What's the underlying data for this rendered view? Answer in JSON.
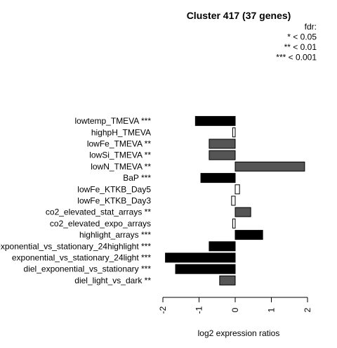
{
  "chart_data": {
    "type": "bar",
    "orientation": "horizontal",
    "title": "Cluster 417 (37 genes)",
    "xlabel": "log2 expression ratios",
    "xlim": [
      -2.1,
      2.1
    ],
    "xticks": [
      -2,
      -1,
      0,
      1,
      2
    ],
    "xtick_labels": [
      "-2",
      "-1",
      "0",
      "1",
      "2"
    ],
    "legend": {
      "position": "top-right",
      "lines": [
        "fdr:",
        "* < 0.05",
        "** < 0.01",
        "*** < 0.001"
      ]
    },
    "categories": [
      "lowtemp_TMEVA ***",
      "highpH_TMEVA",
      "lowFe_TMEVA **",
      "lowSi_TMEVA **",
      "lowN_TMEVA **",
      "BaP ***",
      "lowFe_KTKB_Day5",
      "lowFe_KTKB_Day3",
      "co2_elevated_stat_arrays **",
      "co2_elevated_expo_arrays",
      "highlight_arrays ***",
      "exponential_vs_stationary_24highlight ***",
      "exponential_vs_stationary_24light ***",
      "diel_exponential_vs_stationary ***",
      "diel_light_vs_dark **"
    ],
    "values": [
      -1.1,
      -0.07,
      -0.72,
      -0.72,
      1.92,
      -0.95,
      0.12,
      -0.1,
      0.43,
      -0.07,
      0.76,
      -0.72,
      -1.93,
      -1.65,
      -0.43
    ],
    "colors": [
      "#000000",
      "#ffffff",
      "#555555",
      "#555555",
      "#555555",
      "#000000",
      "#ffffff",
      "#ffffff",
      "#555555",
      "#ffffff",
      "#000000",
      "#000000",
      "#000000",
      "#000000",
      "#555555"
    ]
  }
}
